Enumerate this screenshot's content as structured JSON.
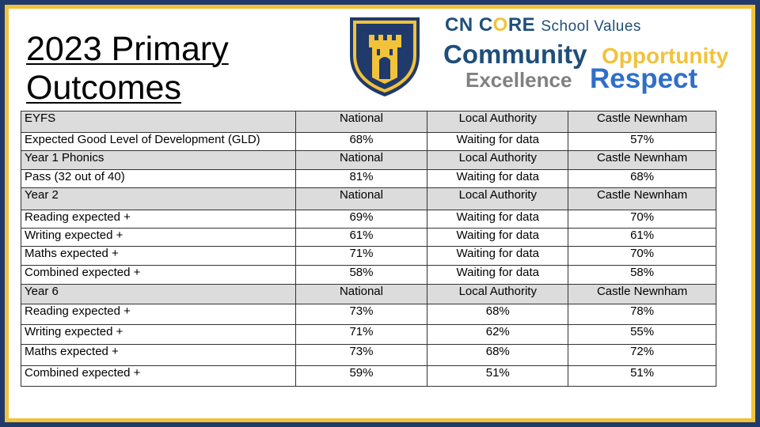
{
  "title": {
    "line1": "2023 Primary",
    "line2": "Outcomes"
  },
  "crest": {
    "icon": "castle-shield-crest",
    "colors": {
      "navy": "#1f3a6b",
      "gold": "#f2c23a"
    }
  },
  "values": {
    "prefix_cn": "CN C",
    "prefix_o": "O",
    "prefix_re": "RE",
    "subtitle": "School Values",
    "community": "Community",
    "opportunity": "Opportunity",
    "excellence": "Excellence",
    "respect": "Respect"
  },
  "table": {
    "rows": [
      {
        "type": "header",
        "cells": [
          "EYFS",
          "National",
          "Local Authority",
          "Castle Newnham"
        ]
      },
      {
        "type": "data",
        "cells": [
          "Expected Good Level of Development (GLD)",
          "68%",
          "Waiting for data",
          "57%"
        ]
      },
      {
        "type": "header",
        "cells": [
          "Year 1 Phonics",
          "National",
          "Local Authority",
          "Castle Newnham"
        ]
      },
      {
        "type": "data",
        "cells": [
          "Pass (32 out of 40)",
          "81%",
          "Waiting for data",
          "68%"
        ]
      },
      {
        "type": "header",
        "cells": [
          "Year 2",
          "National",
          "Local Authority",
          "Castle Newnham"
        ]
      },
      {
        "type": "data",
        "cells": [
          "Reading expected +",
          "69%",
          "Waiting for data",
          "70%"
        ]
      },
      {
        "type": "data",
        "cells": [
          "Writing expected +",
          "61%",
          "Waiting for data",
          "61%"
        ]
      },
      {
        "type": "data",
        "cells": [
          "Maths expected +",
          "71%",
          "Waiting for data",
          "70%"
        ]
      },
      {
        "type": "data",
        "cells": [
          "Combined expected +",
          "58%",
          "Waiting for data",
          "58%"
        ]
      },
      {
        "type": "header",
        "cells": [
          "Year 6",
          "National",
          "Local Authority",
          "Castle Newnham"
        ]
      },
      {
        "type": "data",
        "cells": [
          "Reading expected +",
          "73%",
          "68%",
          "78%"
        ]
      },
      {
        "type": "data",
        "cells": [
          "Writing expected +",
          "71%",
          "62%",
          "55%"
        ]
      },
      {
        "type": "data",
        "cells": [
          "Maths expected +",
          "73%",
          "68%",
          "72%"
        ]
      },
      {
        "type": "data",
        "cells": [
          "Combined expected +",
          "59%",
          "51%",
          "51%"
        ]
      }
    ]
  }
}
